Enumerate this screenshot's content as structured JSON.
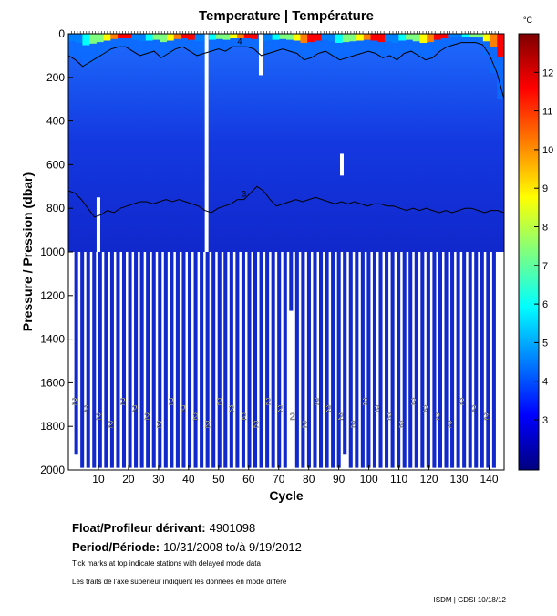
{
  "chart_data": {
    "type": "heatmap",
    "title": "Temperature | Température",
    "xlabel": "Cycle",
    "ylabel": "Pressure / Pression (dbar)",
    "x_ticks": [
      "10",
      "20",
      "30",
      "40",
      "50",
      "60",
      "70",
      "80",
      "90",
      "100",
      "110",
      "120",
      "130",
      "140"
    ],
    "x_tick_values": [
      10,
      20,
      30,
      40,
      50,
      60,
      70,
      80,
      90,
      100,
      110,
      120,
      130,
      140
    ],
    "xlim": [
      0,
      145
    ],
    "y_ticks": [
      "0",
      "200",
      "400",
      "600",
      "800",
      "1000",
      "1200",
      "1400",
      "1600",
      "1800",
      "2000"
    ],
    "y_tick_values": [
      0,
      200,
      400,
      600,
      800,
      1000,
      1200,
      1400,
      1600,
      1800,
      2000
    ],
    "ylim": [
      2000,
      0
    ],
    "colorbar": {
      "unit": "°C",
      "ticks": [
        "3",
        "4",
        "5",
        "6",
        "7",
        "8",
        "9",
        "10",
        "11",
        "12"
      ],
      "tick_values": [
        3,
        4,
        5,
        6,
        7,
        8,
        9,
        10,
        11,
        12
      ],
      "range": [
        1.7,
        13
      ],
      "colors": [
        "#00007f",
        "#0000ff",
        "#007fff",
        "#00ffff",
        "#7fff7f",
        "#ffff00",
        "#ff7f00",
        "#ff0000",
        "#7f0000"
      ]
    },
    "background_temperature": 3,
    "contours": [
      {
        "label": "3",
        "level": 3,
        "depth_dbar": [
          720,
          730,
          760,
          800,
          840,
          830,
          810,
          820,
          800,
          790,
          780,
          770,
          770,
          780,
          770,
          760,
          770,
          760,
          770,
          780,
          790,
          810,
          820,
          800,
          790,
          780,
          760,
          760,
          730,
          700,
          720,
          760,
          790,
          780,
          770,
          760,
          770,
          760,
          750,
          760,
          770,
          780,
          770,
          780,
          770,
          780,
          790,
          780,
          780,
          790,
          790,
          800,
          810,
          800,
          810,
          800,
          810,
          820,
          810,
          820,
          810,
          800,
          800,
          810,
          820,
          810,
          810,
          820
        ]
      },
      {
        "label": "4",
        "level": 4,
        "depth_dbar": [
          100,
          120,
          150,
          130,
          110,
          90,
          70,
          60,
          60,
          80,
          100,
          90,
          80,
          110,
          90,
          70,
          60,
          80,
          100,
          90,
          80,
          70,
          80,
          60,
          60,
          60,
          70,
          100,
          90,
          80,
          70,
          80,
          90,
          120,
          110,
          90,
          80,
          100,
          120,
          110,
          100,
          90,
          80,
          90,
          110,
          100,
          120,
          90,
          80,
          100,
          120,
          110,
          80,
          60,
          50,
          40,
          40,
          40,
          50,
          100,
          180,
          300
        ]
      }
    ],
    "profile_max_pressure_dbar": [
      1930,
      1990,
      1990,
      1990,
      1990,
      1990,
      1990,
      1990,
      1990,
      1990,
      1990,
      1990,
      1990,
      1990,
      1990,
      1990,
      1990,
      1990,
      1990,
      1990,
      1990,
      1990,
      1990,
      1990,
      1990,
      1990,
      1990,
      1990,
      1990,
      1990,
      1990,
      1990,
      1990,
      1990,
      1990,
      1990,
      1270,
      1990,
      1990,
      1990,
      1990,
      1990,
      1990,
      1990,
      1990,
      1930,
      1990,
      1990,
      1990,
      1990,
      1990,
      1990,
      1990,
      1990,
      1990,
      1990,
      1990,
      1990,
      1990,
      1990,
      1990,
      1990,
      1990,
      1990,
      1990,
      1990,
      1990,
      1990,
      1990,
      1990,
      1990
    ],
    "deep_profile_labels": [
      "2",
      "2",
      "2",
      "2",
      "2",
      "2",
      "2",
      "2",
      "2",
      "2",
      "2",
      "2",
      "2",
      "2",
      "2",
      "2",
      "2",
      "2",
      "2",
      "2",
      "2",
      "2",
      "2",
      "2",
      "2",
      "2",
      "2",
      "2",
      "2",
      "2",
      "2",
      "2",
      "2",
      "2",
      "2"
    ],
    "gaps": [
      {
        "cycle": 46,
        "from_dbar": 0,
        "to_dbar": 1000
      },
      {
        "cycle": 64,
        "from_dbar": 0,
        "to_dbar": 190
      },
      {
        "cycle": 91,
        "from_dbar": 550,
        "to_dbar": 650
      },
      {
        "cycle": 10,
        "from_dbar": 750,
        "to_dbar": 1000
      }
    ]
  },
  "info": {
    "float_label": "Float/Profileur dérivant:",
    "float_value": "4901098",
    "period_label": "Period/Période:",
    "period_value": "10/31/2008  to/à  9/19/2012",
    "note_en": "Tick marks at top indicate stations with delayed mode data",
    "note_fr": "Les traits de l'axe supérieur indiquent les données en mode différé",
    "footer": "ISDM | GDSI  10/18/12"
  }
}
